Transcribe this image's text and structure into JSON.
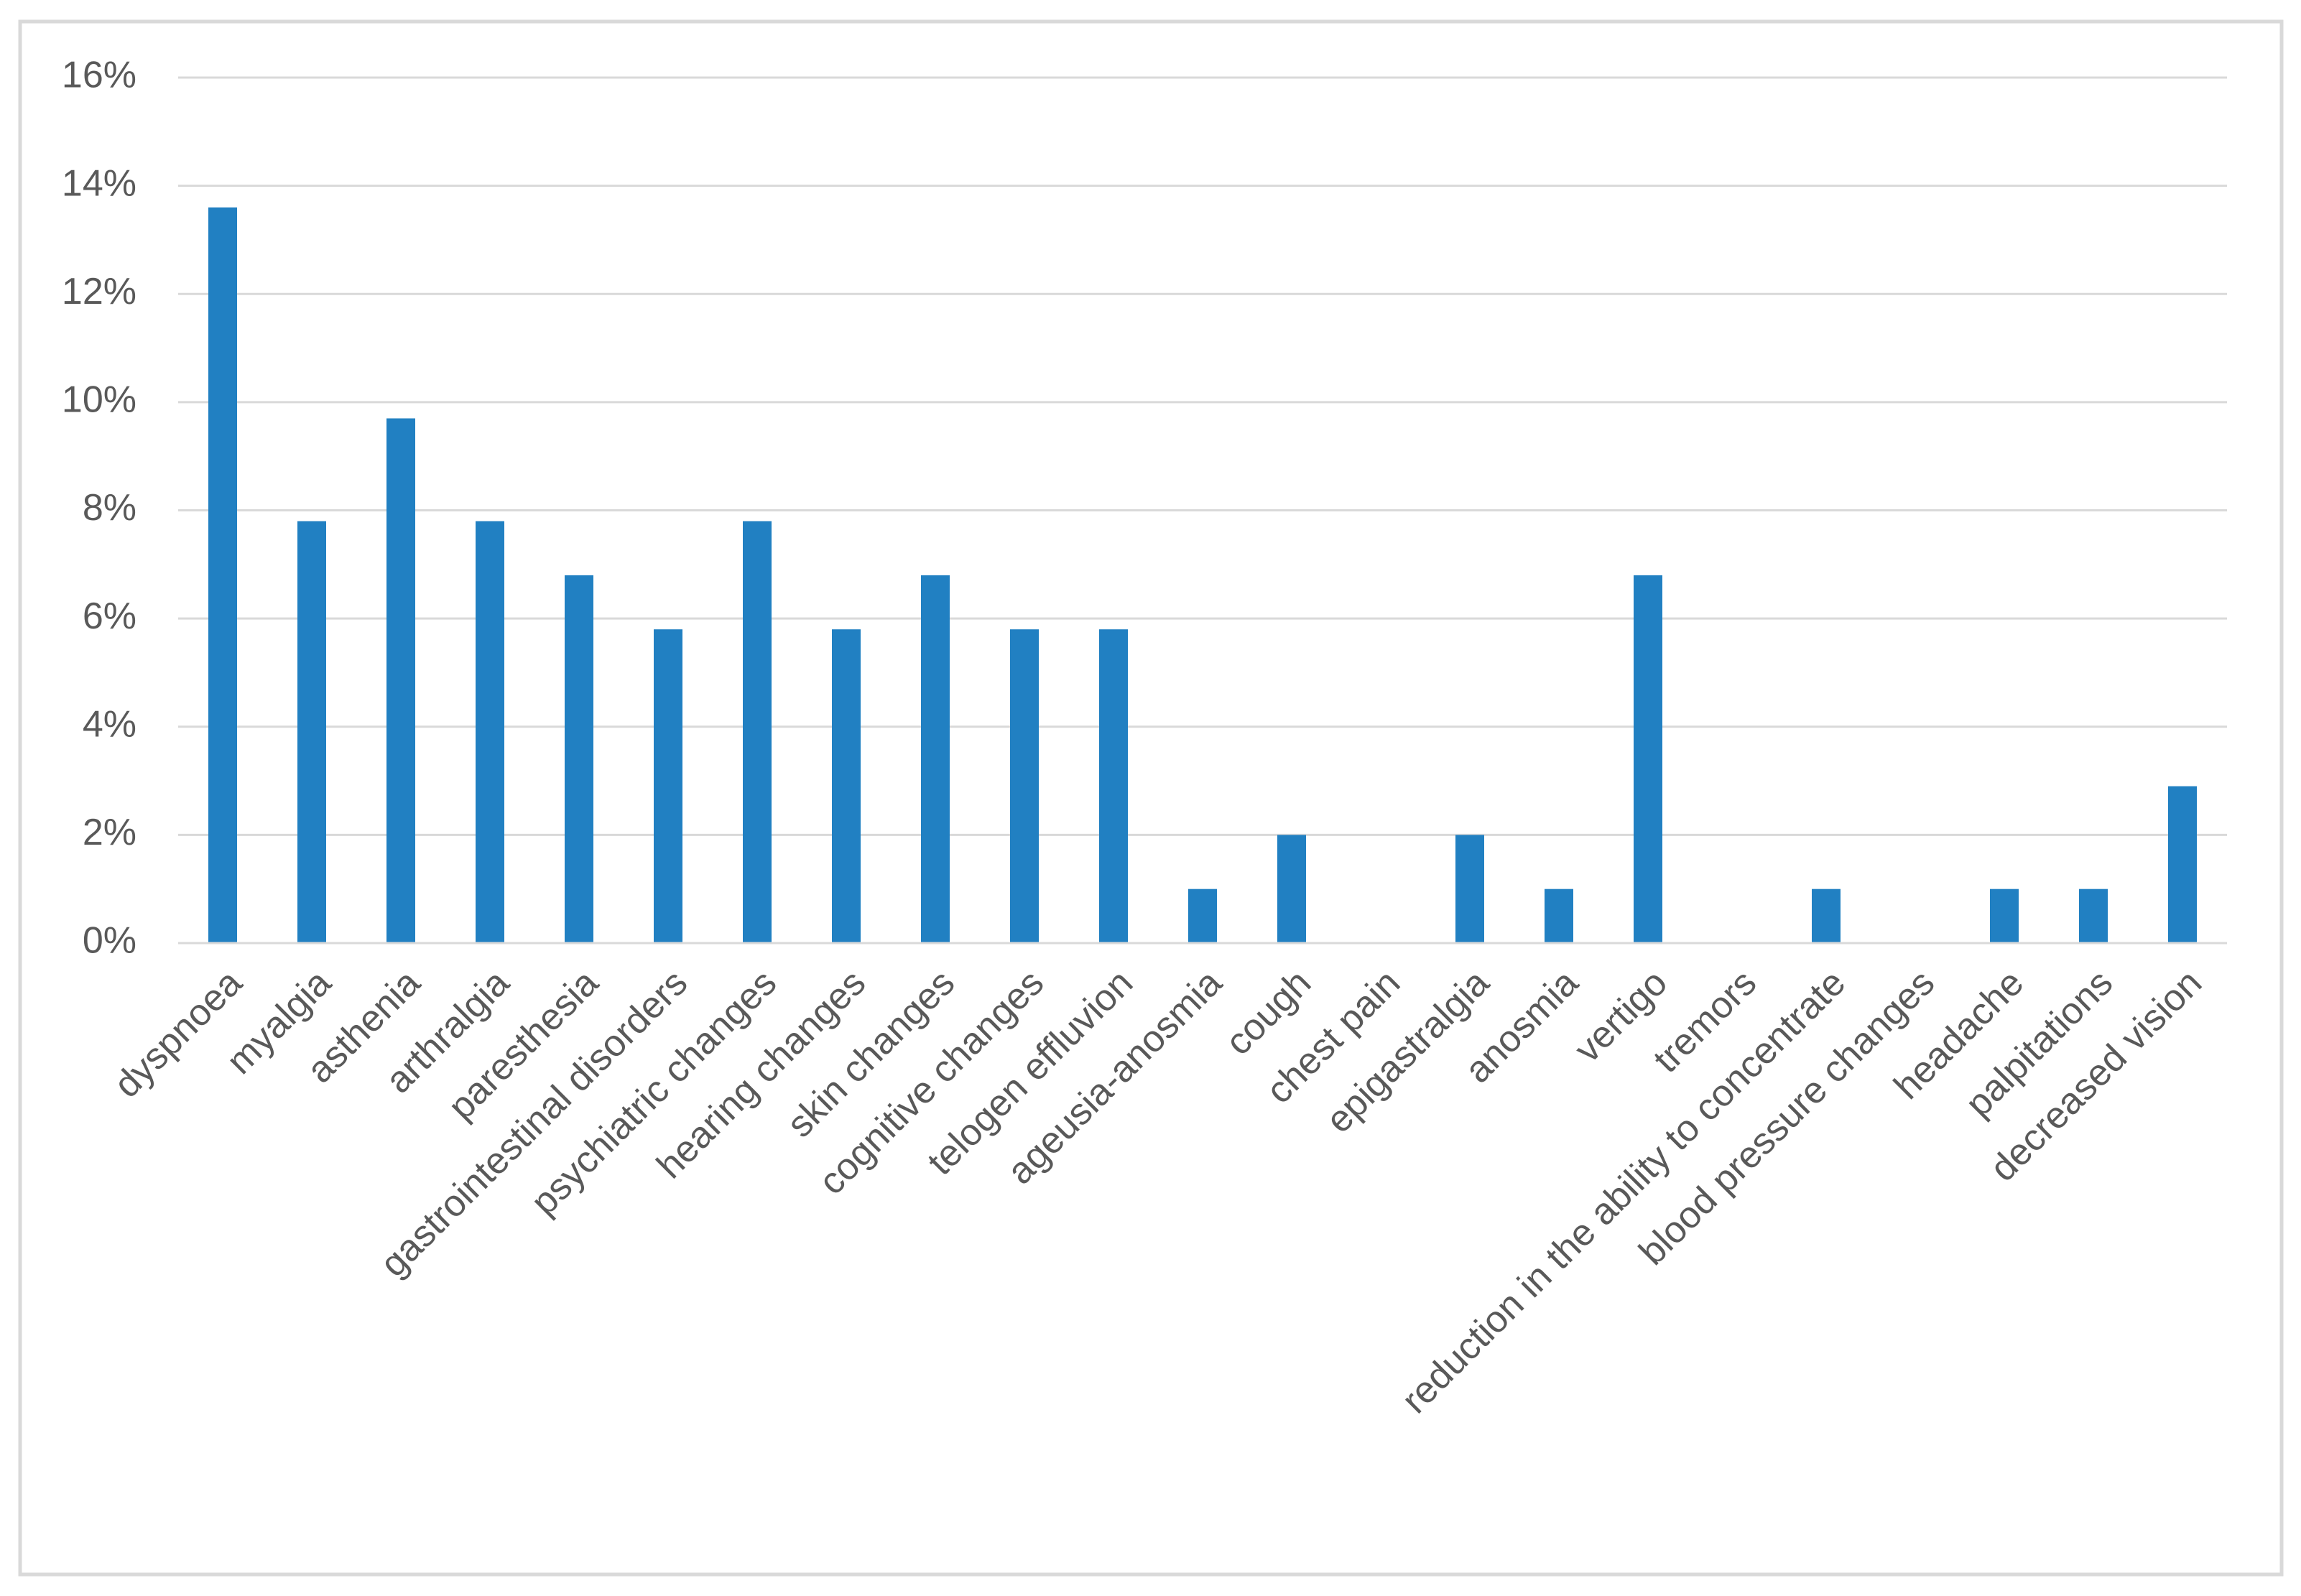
{
  "chart_data": {
    "type": "bar",
    "title": "",
    "xlabel": "",
    "ylabel": "",
    "ylim": [
      0,
      16
    ],
    "yticks": [
      0,
      2,
      4,
      6,
      8,
      10,
      12,
      14,
      16
    ],
    "ytick_labels": [
      "0%",
      "2%",
      "4%",
      "6%",
      "8%",
      "10%",
      "12%",
      "14%",
      "16%"
    ],
    "y_unit": "%",
    "grid": true,
    "legend": "none",
    "bar_color": "#2180C2",
    "grid_color": "#D9D9D9",
    "axis_color": "#D9D9D9",
    "border_color": "#D9D9D9",
    "label_color": "#595959",
    "categories": [
      "dyspnoea",
      "myalgia",
      "asthenia",
      "arthralgia",
      "paresthesia",
      "gastrointestinal disorders",
      "psychiatric changes",
      "hearing changes",
      "skin changes",
      "cognitive changes",
      "telogen effluvion",
      "ageusia-anosmia",
      "cough",
      "chest pain",
      "epigastralgia",
      "anosmia",
      "vertigo",
      "tremors",
      "reduction in the ability to concentrate",
      "blood pressure changes",
      "headache",
      "palpitations",
      "decreased vision"
    ],
    "values": [
      13.6,
      7.8,
      9.7,
      7.8,
      6.8,
      5.8,
      7.8,
      5.8,
      6.8,
      5.8,
      5.8,
      1.0,
      2.0,
      0,
      2.0,
      1.0,
      6.8,
      0,
      1.0,
      0,
      1.0,
      1.0,
      2.9
    ]
  }
}
